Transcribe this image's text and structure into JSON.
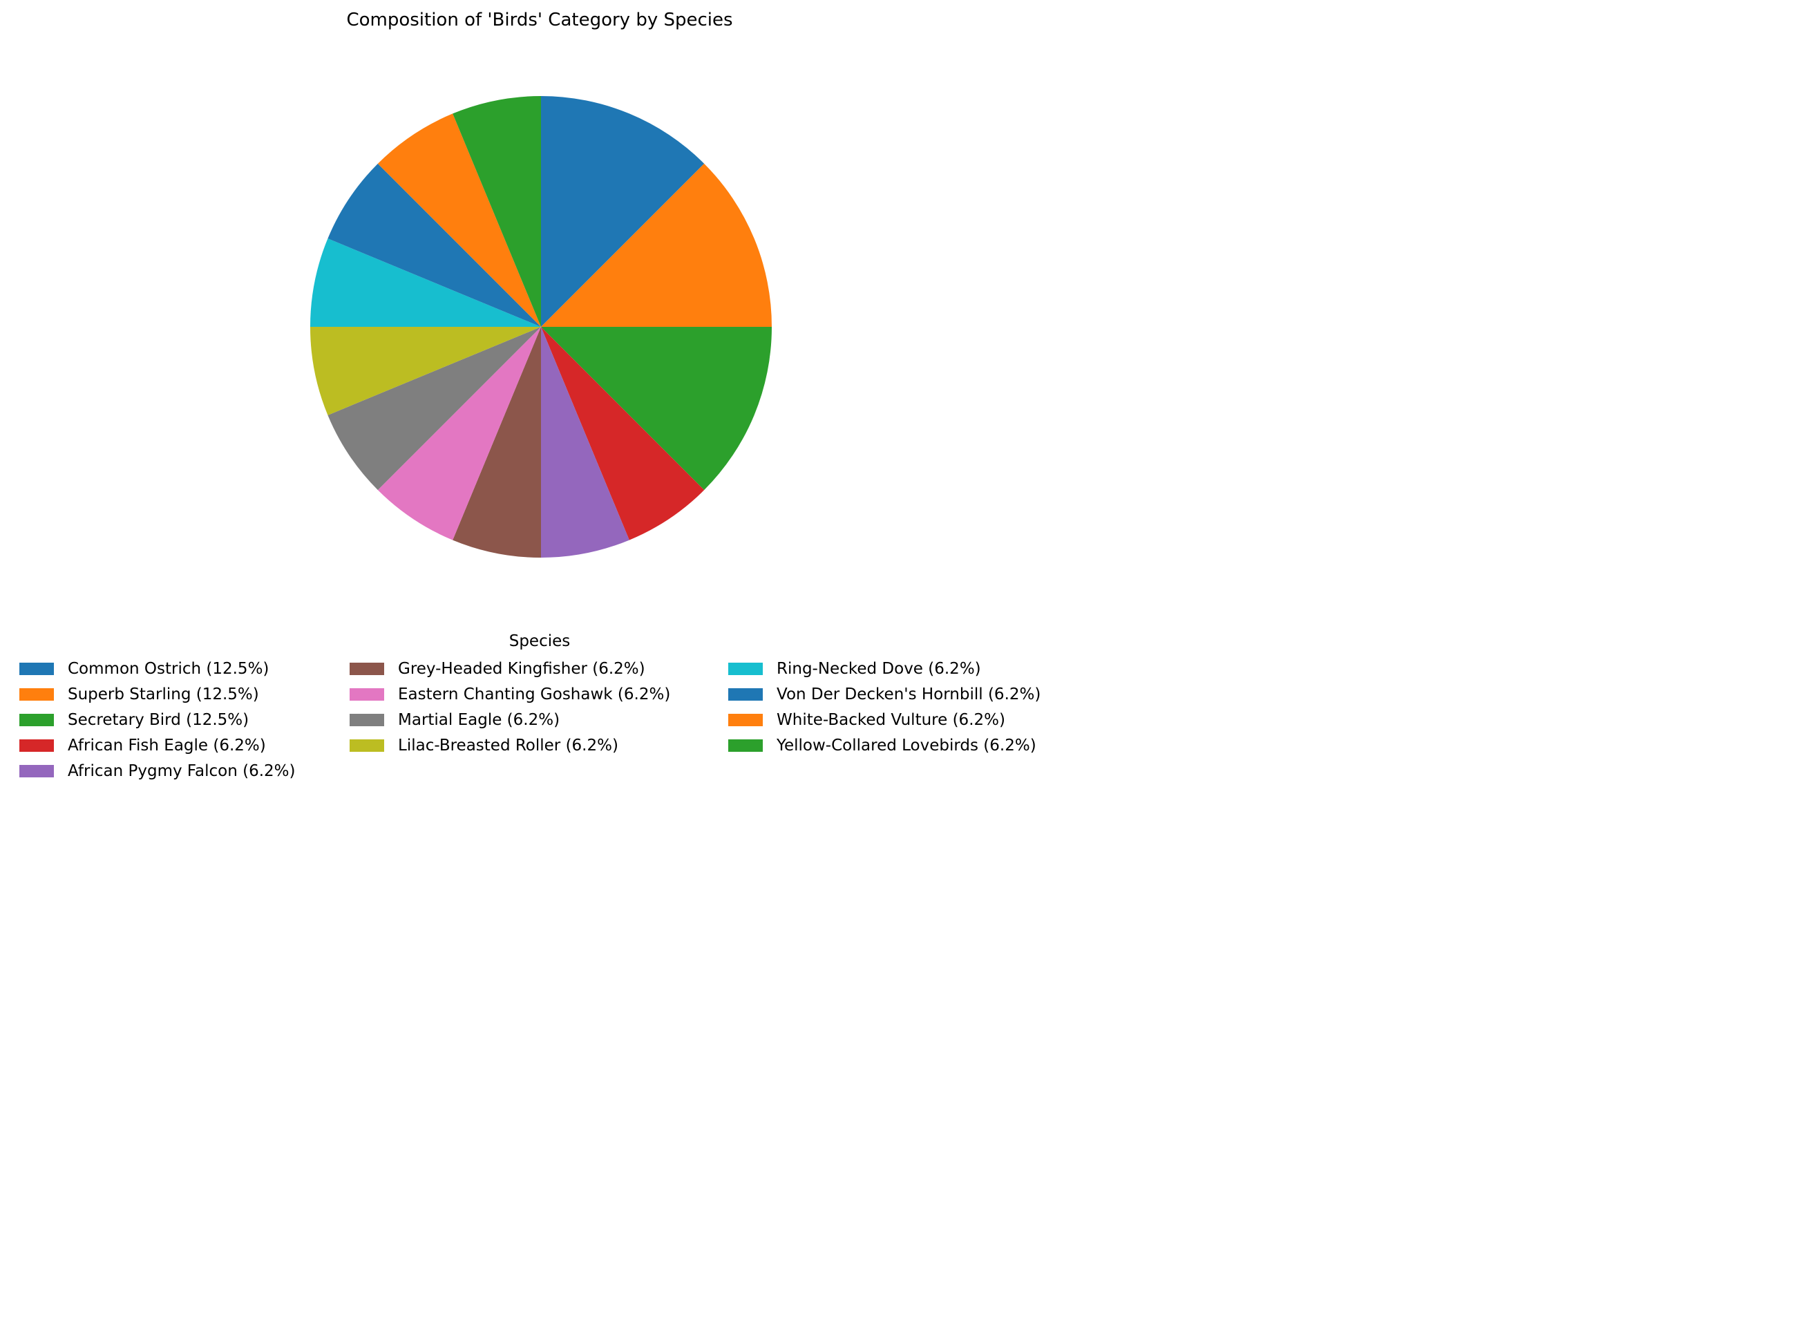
{
  "chart_data": {
    "type": "pie",
    "title": "Composition of 'Birds' Category by Species",
    "legend_title": "Species",
    "legend_placement": "bottom",
    "start_angle": 90,
    "direction": "clockwise",
    "slices": [
      {
        "label": "Common Ostrich (12.5%)",
        "value": 12.5,
        "color": "#1f77b4"
      },
      {
        "label": "Superb Starling (12.5%)",
        "value": 12.5,
        "color": "#ff7f0e"
      },
      {
        "label": "Secretary Bird (12.5%)",
        "value": 12.5,
        "color": "#2ca02c"
      },
      {
        "label": "African Fish Eagle (6.2%)",
        "value": 6.25,
        "color": "#d62728"
      },
      {
        "label": "African Pygmy Falcon (6.2%)",
        "value": 6.25,
        "color": "#9467bd"
      },
      {
        "label": "Grey-Headed Kingfisher (6.2%)",
        "value": 6.25,
        "color": "#8c564b"
      },
      {
        "label": "Eastern Chanting Goshawk (6.2%)",
        "value": 6.25,
        "color": "#e377c2"
      },
      {
        "label": "Martial Eagle (6.2%)",
        "value": 6.25,
        "color": "#7f7f7f"
      },
      {
        "label": "Lilac-Breasted Roller (6.2%)",
        "value": 6.25,
        "color": "#bcbd22"
      },
      {
        "label": "Ring-Necked Dove (6.2%)",
        "value": 6.25,
        "color": "#17becf"
      },
      {
        "label": "Von Der Decken's Hornbill (6.2%)",
        "value": 6.25,
        "color": "#1f77b4"
      },
      {
        "label": "White-Backed Vulture (6.2%)",
        "value": 6.25,
        "color": "#ff7f0e"
      },
      {
        "label": "Yellow-Collared Lovebirds (6.2%)",
        "value": 6.25,
        "color": "#2ca02c"
      }
    ]
  }
}
